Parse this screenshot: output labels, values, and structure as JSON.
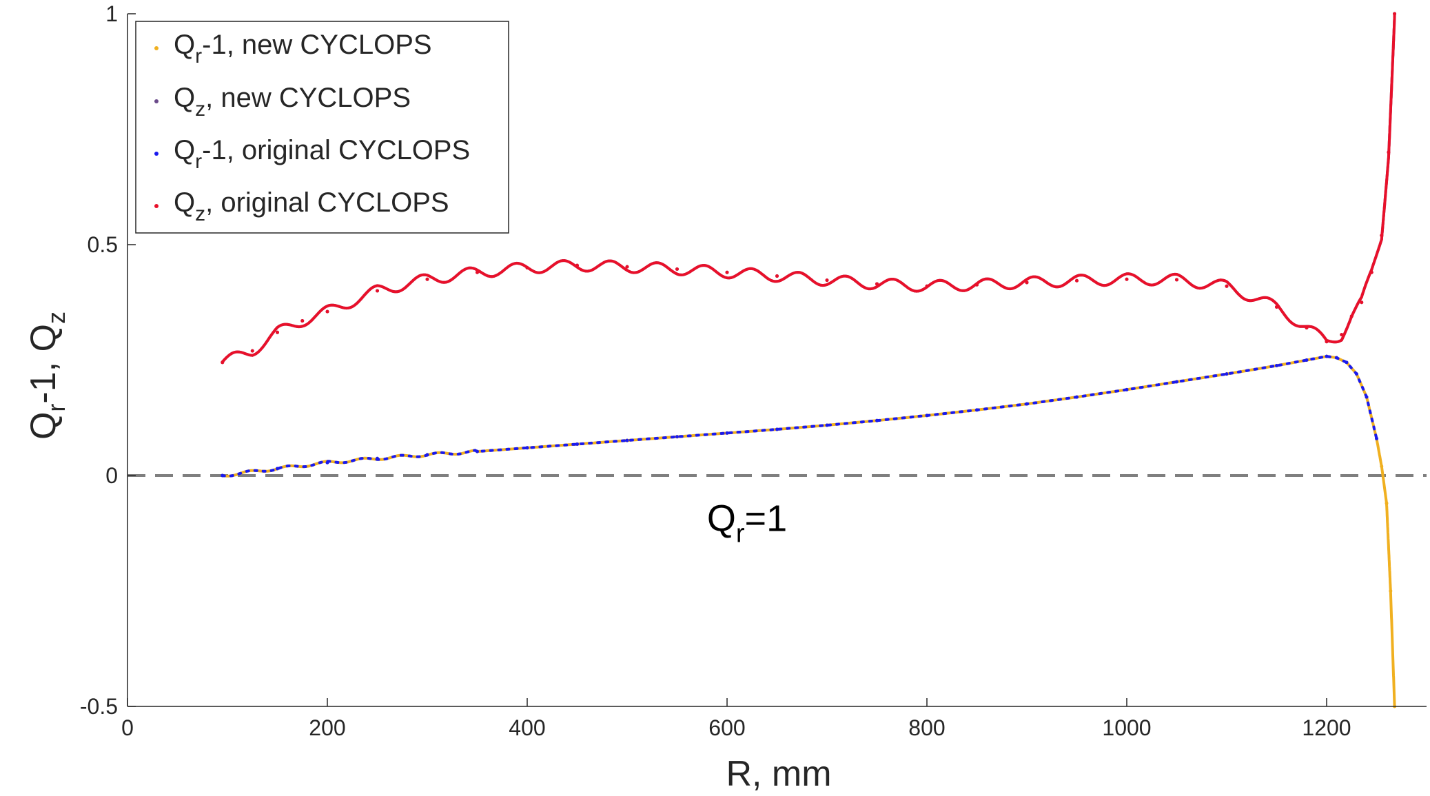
{
  "chart_data": {
    "type": "scatter",
    "title": "",
    "xlabel": {
      "main": "R, mm"
    },
    "ylabel": {
      "q1": "Q",
      "s1": "r",
      "mid": "-1, ",
      "q2": "Q",
      "s2": "z"
    },
    "xlim": [
      0,
      1300
    ],
    "ylim": [
      -0.5,
      1
    ],
    "xticks": [
      "0",
      "200",
      "400",
      "600",
      "800",
      "1000",
      "1200"
    ],
    "yticks": [
      "-0.5",
      "0",
      "0.5",
      "1"
    ],
    "grid": false,
    "legend_position": "top-left",
    "reference_line": {
      "y": 0,
      "style": "dashed",
      "color": "#7f7f7f"
    },
    "annotation": {
      "q": "Q",
      "sub": "r",
      "rest": "=1",
      "x": 620,
      "y": -0.12
    },
    "series": [
      {
        "legend": {
          "q": "Q",
          "sub": "r",
          "rest": "-1, new CYCLOPS"
        },
        "color": "#f0b020",
        "marker": "dot",
        "x": [
          95,
          150,
          200,
          250,
          300,
          350,
          400,
          450,
          500,
          550,
          600,
          650,
          700,
          750,
          800,
          850,
          900,
          950,
          1000,
          1050,
          1100,
          1150,
          1180,
          1200,
          1210,
          1220,
          1230,
          1240,
          1250,
          1255,
          1260,
          1264,
          1268
        ],
        "y": [
          0.0,
          0.015,
          0.028,
          0.037,
          0.045,
          0.052,
          0.06,
          0.068,
          0.076,
          0.084,
          0.092,
          0.1,
          0.109,
          0.119,
          0.13,
          0.142,
          0.155,
          0.17,
          0.186,
          0.203,
          0.22,
          0.238,
          0.25,
          0.258,
          0.255,
          0.245,
          0.22,
          0.17,
          0.08,
          0.02,
          -0.06,
          -0.25,
          -0.5
        ]
      },
      {
        "legend": {
          "q": "Q",
          "sub": "z",
          "rest": ", new CYCLOPS"
        },
        "color": "#6a4a8a",
        "marker": "dot",
        "x": [
          95,
          125,
          150,
          175,
          200,
          250,
          300,
          350,
          400,
          450,
          500,
          550,
          600,
          650,
          700,
          750,
          800,
          850,
          900,
          950,
          1000,
          1050,
          1100,
          1150,
          1180,
          1200,
          1215,
          1225,
          1235,
          1245,
          1255,
          1262,
          1268
        ],
        "y": [
          0.245,
          0.27,
          0.31,
          0.335,
          0.355,
          0.4,
          0.425,
          0.44,
          0.45,
          0.455,
          0.452,
          0.447,
          0.44,
          0.432,
          0.423,
          0.415,
          0.41,
          0.413,
          0.418,
          0.422,
          0.425,
          0.424,
          0.41,
          0.365,
          0.32,
          0.29,
          0.305,
          0.345,
          0.375,
          0.44,
          0.52,
          0.7,
          1.0
        ]
      },
      {
        "legend": {
          "q": "Q",
          "sub": "r",
          "rest": "-1, original CYCLOPS"
        },
        "color": "#1a1aee",
        "marker": "dot",
        "x": [
          95,
          150,
          200,
          250,
          300,
          350,
          400,
          450,
          500,
          550,
          600,
          650,
          700,
          750,
          800,
          850,
          900,
          950,
          1000,
          1050,
          1100,
          1150,
          1180,
          1200,
          1210,
          1220,
          1230,
          1240,
          1250
        ],
        "y": [
          0.0,
          0.015,
          0.028,
          0.037,
          0.045,
          0.052,
          0.06,
          0.068,
          0.076,
          0.084,
          0.092,
          0.1,
          0.109,
          0.119,
          0.13,
          0.142,
          0.155,
          0.17,
          0.186,
          0.203,
          0.22,
          0.238,
          0.25,
          0.258,
          0.255,
          0.245,
          0.22,
          0.17,
          0.08
        ]
      },
      {
        "legend": {
          "q": "Q",
          "sub": "z",
          "rest": ", original CYCLOPS"
        },
        "color": "#e8102a",
        "marker": "dot",
        "x": [
          95,
          125,
          150,
          175,
          200,
          250,
          300,
          350,
          400,
          450,
          500,
          550,
          600,
          650,
          700,
          750,
          800,
          850,
          900,
          950,
          1000,
          1050,
          1100,
          1150,
          1180,
          1200,
          1215,
          1225,
          1235,
          1245,
          1255,
          1262,
          1268
        ],
        "y": [
          0.245,
          0.27,
          0.31,
          0.335,
          0.355,
          0.4,
          0.425,
          0.44,
          0.45,
          0.455,
          0.452,
          0.447,
          0.44,
          0.432,
          0.423,
          0.415,
          0.41,
          0.413,
          0.418,
          0.422,
          0.425,
          0.424,
          0.41,
          0.365,
          0.32,
          0.29,
          0.305,
          0.345,
          0.375,
          0.44,
          0.52,
          0.7,
          1.0
        ]
      }
    ]
  }
}
